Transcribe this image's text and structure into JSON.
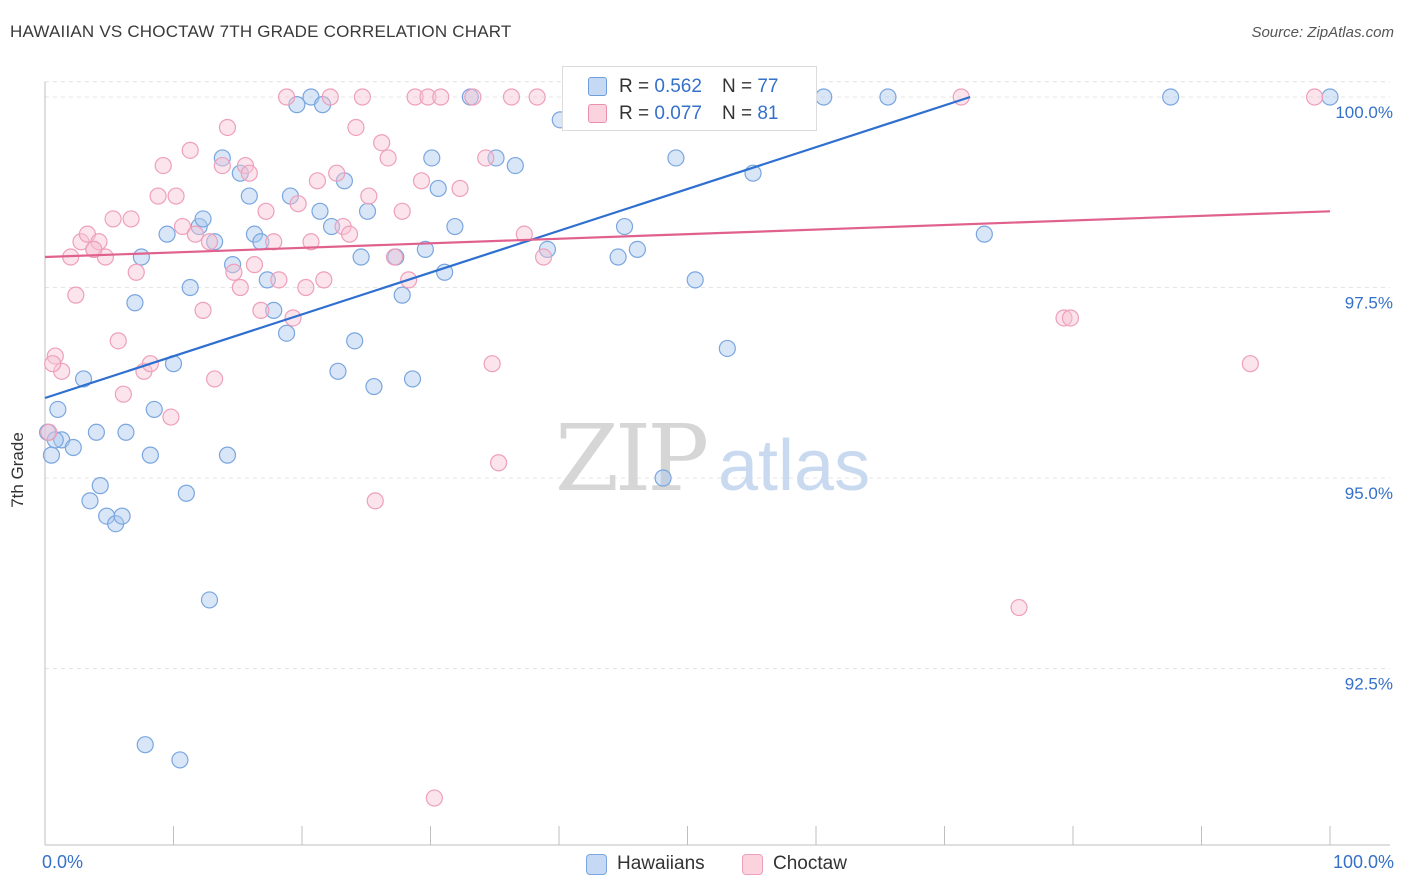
{
  "title": "HAWAIIAN VS CHOCTAW 7TH GRADE CORRELATION CHART",
  "source": "Source: ZipAtlas.com",
  "watermark": {
    "zip": "ZIP",
    "atlas": "atlas"
  },
  "stats": [
    {
      "r_label": "R =",
      "r_value": "0.562",
      "n_label": "N =",
      "n_value": "77",
      "color": "#a9c7ee",
      "border": "#6e9fdc"
    },
    {
      "r_label": "R =",
      "r_value": "0.077",
      "n_label": "N =",
      "n_value": "81",
      "color": "#f7c3d3",
      "border": "#ea8fae"
    }
  ],
  "legend": [
    {
      "label": "Hawaiians",
      "color": "#c5d9f4",
      "border": "#7aa6df"
    },
    {
      "label": "Choctaw",
      "color": "#fad3df",
      "border": "#ee9fbb"
    }
  ],
  "chart_data": {
    "type": "scatter",
    "title": "HAWAIIAN VS CHOCTAW 7TH GRADE CORRELATION CHART",
    "xlabel": "",
    "ylabel": "7th Grade",
    "xlim": [
      0,
      100
    ],
    "ylim": [
      90.0,
      100.2
    ],
    "x_tick_labels": [
      "0.0%",
      "100.0%"
    ],
    "y_ticks": [
      92.5,
      95.0,
      97.5,
      100.0
    ],
    "y_tick_labels": [
      "92.5%",
      "95.0%",
      "97.5%",
      "100.0%"
    ],
    "grid": true,
    "colors": {
      "blue_fill": "#a9c7ee",
      "blue_line": "#2e6fd0",
      "pink_fill": "#f7c3d3",
      "pink_line": "#e0608e",
      "tick_text": "#3570c9",
      "grid": "#e4e4e4"
    },
    "series": [
      {
        "name": "Hawaiians",
        "trend": {
          "x0": 0,
          "y0": 96.05,
          "x1": 72,
          "y1": 100.0
        },
        "points": [
          [
            0.5,
            95.3
          ],
          [
            1,
            95.9
          ],
          [
            1.3,
            95.5
          ],
          [
            2.2,
            95.4
          ],
          [
            3,
            96.3
          ],
          [
            3.5,
            94.7
          ],
          [
            4,
            95.6
          ],
          [
            4.3,
            94.9
          ],
          [
            4.8,
            94.5
          ],
          [
            5.5,
            94.4
          ],
          [
            6,
            94.5
          ],
          [
            6.3,
            95.6
          ],
          [
            7,
            97.3
          ],
          [
            7.5,
            97.9
          ],
          [
            7.8,
            91.5
          ],
          [
            8.2,
            95.3
          ],
          [
            8.5,
            95.9
          ],
          [
            9.5,
            98.2
          ],
          [
            10,
            96.5
          ],
          [
            10.5,
            91.3
          ],
          [
            11,
            94.8
          ],
          [
            11.3,
            97.5
          ],
          [
            12,
            98.3
          ],
          [
            12.3,
            98.4
          ],
          [
            12.8,
            93.4
          ],
          [
            13.2,
            98.1
          ],
          [
            13.8,
            99.2
          ],
          [
            14.2,
            95.3
          ],
          [
            14.6,
            97.8
          ],
          [
            15.2,
            99.0
          ],
          [
            15.9,
            98.7
          ],
          [
            16.3,
            98.2
          ],
          [
            16.8,
            98.1
          ],
          [
            17.3,
            97.6
          ],
          [
            17.8,
            97.2
          ],
          [
            18.8,
            96.9
          ],
          [
            19.1,
            98.7
          ],
          [
            19.6,
            99.9
          ],
          [
            20.7,
            100.0
          ],
          [
            21.6,
            99.9
          ],
          [
            21.4,
            98.5
          ],
          [
            22.3,
            98.3
          ],
          [
            22.8,
            96.4
          ],
          [
            23.3,
            98.9
          ],
          [
            24.1,
            96.8
          ],
          [
            24.6,
            97.9
          ],
          [
            25.1,
            98.5
          ],
          [
            25.6,
            96.2
          ],
          [
            27.3,
            97.9
          ],
          [
            27.8,
            97.4
          ],
          [
            28.6,
            96.3
          ],
          [
            29.6,
            98.0
          ],
          [
            30.1,
            99.2
          ],
          [
            30.6,
            98.8
          ],
          [
            31.1,
            97.7
          ],
          [
            31.9,
            98.3
          ],
          [
            33.1,
            100.0
          ],
          [
            35.1,
            99.2
          ],
          [
            36.6,
            99.1
          ],
          [
            39.1,
            98.0
          ],
          [
            40.1,
            99.7
          ],
          [
            44.6,
            97.9
          ],
          [
            45.1,
            98.3
          ],
          [
            46.1,
            98.0
          ],
          [
            47.1,
            100.0
          ],
          [
            48.1,
            95.0
          ],
          [
            49.1,
            99.2
          ],
          [
            50.6,
            97.6
          ],
          [
            53.1,
            96.7
          ],
          [
            55.1,
            99.0
          ],
          [
            60.6,
            100.0
          ],
          [
            65.6,
            100.0
          ],
          [
            73.1,
            98.2
          ],
          [
            87.6,
            100.0
          ],
          [
            100,
            100.0
          ],
          [
            0.2,
            95.6
          ],
          [
            0.8,
            95.5
          ]
        ]
      },
      {
        "name": "Choctaw",
        "trend": {
          "x0": 0,
          "y0": 97.9,
          "x1": 100,
          "y1": 98.5
        },
        "points": [
          [
            0.3,
            95.6
          ],
          [
            0.8,
            96.6
          ],
          [
            1.3,
            96.4
          ],
          [
            2,
            97.9
          ],
          [
            2.4,
            97.4
          ],
          [
            2.8,
            98.1
          ],
          [
            3.3,
            98.2
          ],
          [
            3.8,
            98.0
          ],
          [
            4.2,
            98.1
          ],
          [
            4.7,
            97.9
          ],
          [
            5.3,
            98.4
          ],
          [
            5.7,
            96.8
          ],
          [
            6.1,
            96.1
          ],
          [
            6.7,
            98.4
          ],
          [
            7.1,
            97.7
          ],
          [
            7.7,
            96.4
          ],
          [
            8.2,
            96.5
          ],
          [
            8.8,
            98.7
          ],
          [
            9.2,
            99.1
          ],
          [
            9.8,
            95.8
          ],
          [
            10.2,
            98.7
          ],
          [
            10.7,
            98.3
          ],
          [
            11.3,
            99.3
          ],
          [
            11.7,
            98.2
          ],
          [
            12.3,
            97.2
          ],
          [
            12.8,
            98.1
          ],
          [
            13.2,
            96.3
          ],
          [
            13.8,
            99.1
          ],
          [
            14.2,
            99.6
          ],
          [
            14.7,
            97.7
          ],
          [
            15.2,
            97.5
          ],
          [
            15.6,
            99.1
          ],
          [
            15.9,
            99.0
          ],
          [
            16.3,
            97.8
          ],
          [
            16.8,
            97.2
          ],
          [
            17.2,
            98.5
          ],
          [
            17.8,
            98.1
          ],
          [
            18.2,
            97.6
          ],
          [
            18.8,
            100.0
          ],
          [
            19.3,
            97.1
          ],
          [
            19.7,
            98.6
          ],
          [
            20.3,
            97.5
          ],
          [
            20.7,
            98.1
          ],
          [
            21.2,
            98.9
          ],
          [
            21.7,
            97.6
          ],
          [
            22.2,
            100.0
          ],
          [
            22.7,
            99.0
          ],
          [
            23.2,
            98.3
          ],
          [
            23.7,
            98.2
          ],
          [
            24.2,
            99.6
          ],
          [
            24.7,
            100.0
          ],
          [
            25.2,
            98.7
          ],
          [
            25.7,
            94.7
          ],
          [
            26.2,
            99.4
          ],
          [
            26.7,
            99.2
          ],
          [
            27.2,
            97.9
          ],
          [
            27.8,
            98.5
          ],
          [
            28.3,
            97.6
          ],
          [
            28.8,
            100.0
          ],
          [
            29.3,
            98.9
          ],
          [
            29.8,
            100.0
          ],
          [
            30.3,
            90.8
          ],
          [
            30.8,
            100.0
          ],
          [
            32.3,
            98.8
          ],
          [
            33.3,
            100.0
          ],
          [
            34.3,
            99.2
          ],
          [
            34.8,
            96.5
          ],
          [
            35.3,
            95.2
          ],
          [
            36.3,
            100.0
          ],
          [
            37.3,
            98.2
          ],
          [
            38.3,
            100.0
          ],
          [
            38.8,
            97.9
          ],
          [
            55.3,
            99.9
          ],
          [
            71.3,
            100.0
          ],
          [
            75.8,
            93.3
          ],
          [
            79.3,
            97.1
          ],
          [
            79.8,
            97.1
          ],
          [
            93.8,
            96.5
          ],
          [
            98.8,
            100.0
          ],
          [
            3.8,
            98.0
          ],
          [
            0.6,
            96.5
          ]
        ]
      }
    ]
  }
}
